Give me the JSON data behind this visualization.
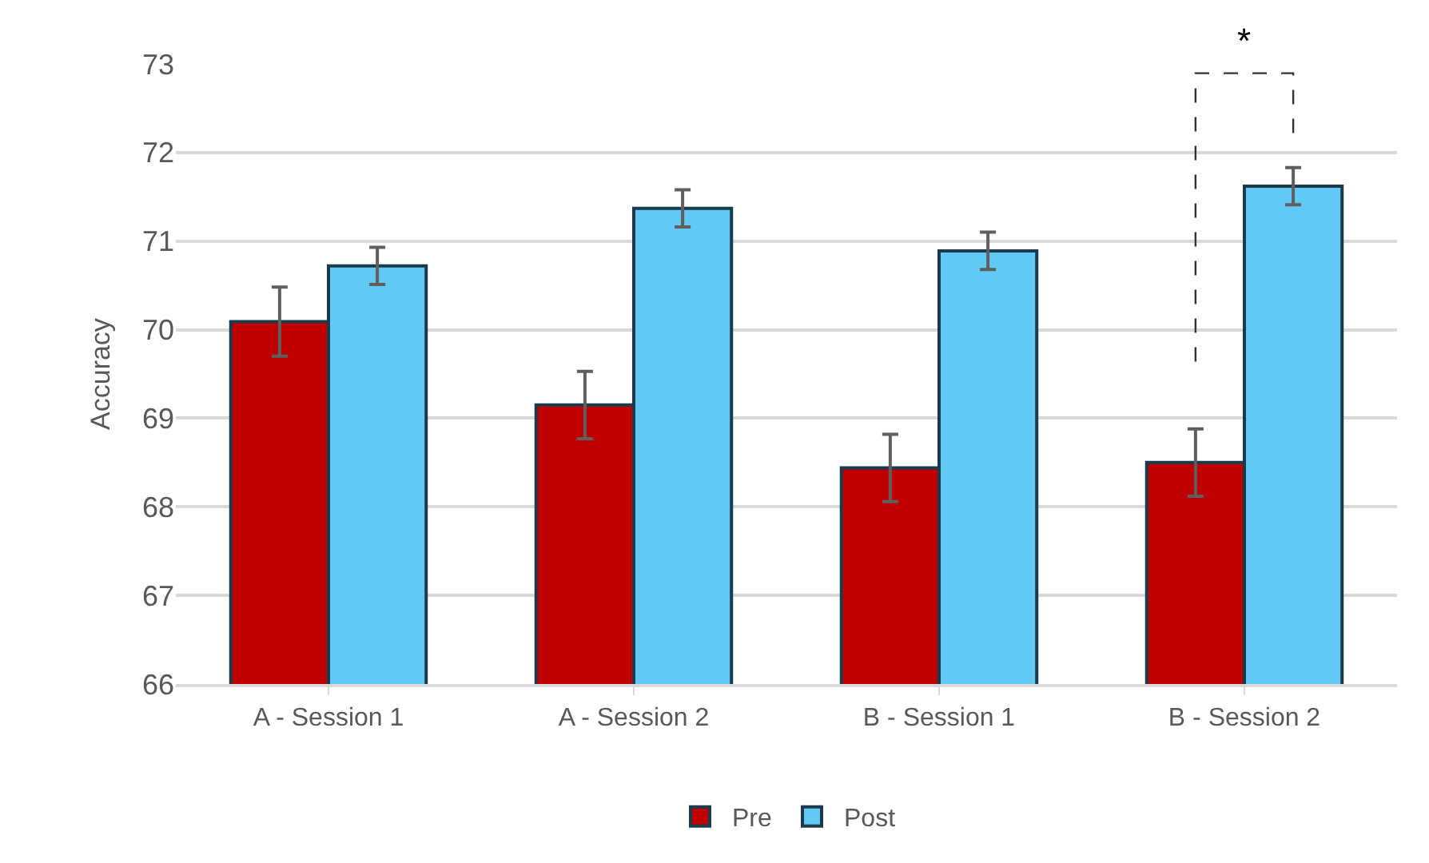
{
  "chart_data": {
    "type": "bar",
    "ylabel": "Accuracy",
    "categories": [
      "A - Session 1",
      "A - Session 2",
      "B - Session 1",
      "B - Session 2"
    ],
    "series": [
      {
        "name": "Pre",
        "color": "#c00000",
        "values": [
          70.09,
          69.15,
          68.44,
          68.5
        ],
        "errors": [
          0.39,
          0.38,
          0.38,
          0.38
        ]
      },
      {
        "name": "Post",
        "color": "#61c9f3",
        "values": [
          70.72,
          71.37,
          70.89,
          71.62
        ],
        "errors": [
          0.21,
          0.21,
          0.21,
          0.21
        ]
      }
    ],
    "ylim": [
      66,
      73
    ],
    "yticks": [
      66,
      67,
      68,
      69,
      70,
      71,
      72,
      73
    ],
    "grid": "y",
    "legend": "bottom",
    "annotations": [
      "*"
    ]
  }
}
